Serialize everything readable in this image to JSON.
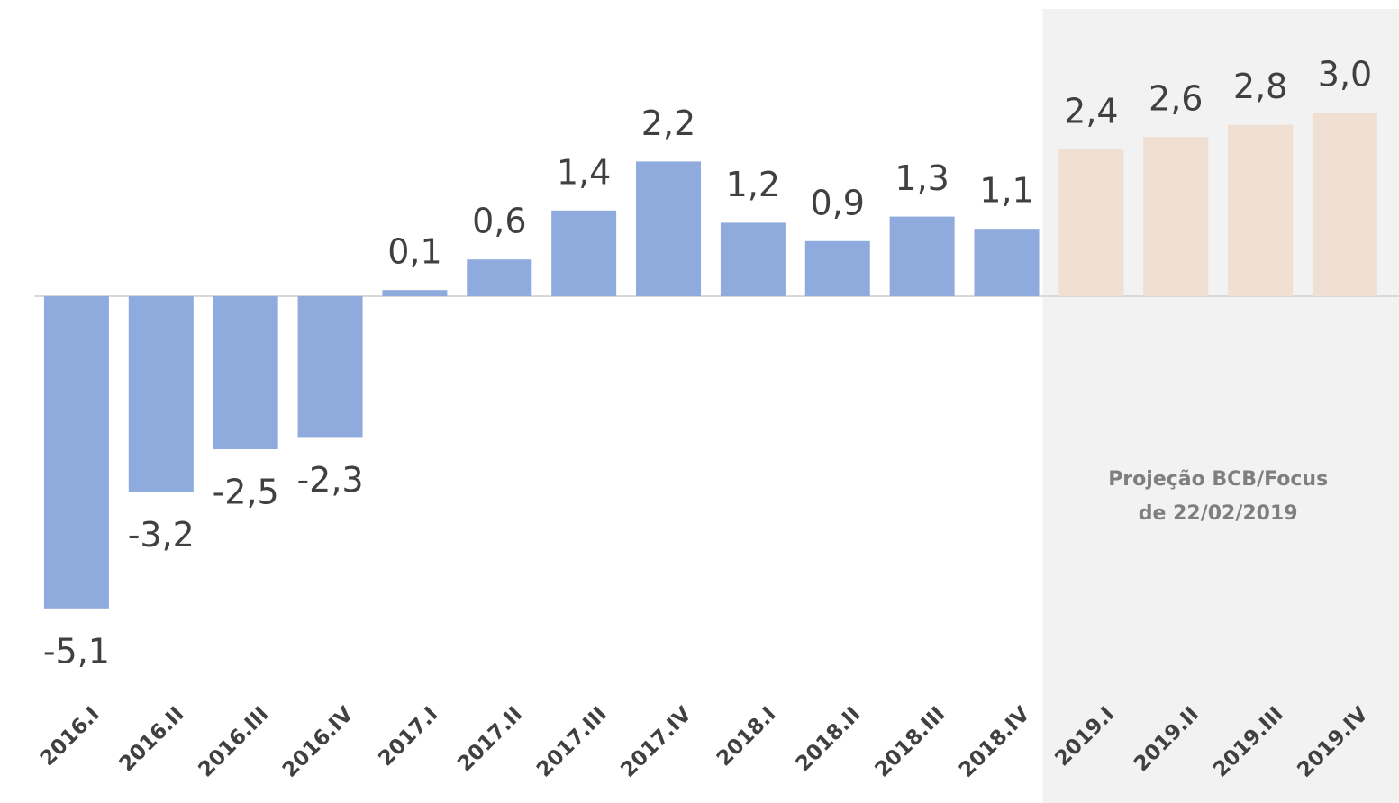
{
  "chart_data": {
    "type": "bar",
    "categories": [
      "2016.I",
      "2016.II",
      "2016.III",
      "2016.IV",
      "2017.I",
      "2017.II",
      "2017.III",
      "2017.IV",
      "2018.I",
      "2018.II",
      "2018.III",
      "2018.IV",
      "2019.I",
      "2019.II",
      "2019.III",
      "2019.IV"
    ],
    "values": [
      -5.1,
      -3.2,
      -2.5,
      -2.3,
      0.1,
      0.6,
      1.4,
      2.2,
      1.2,
      0.9,
      1.3,
      1.1,
      2.4,
      2.6,
      2.8,
      3.0
    ],
    "value_labels": [
      "-5,1",
      "-3,2",
      "-2,5",
      "-2,3",
      "0,1",
      "0,6",
      "1,4",
      "2,2",
      "1,2",
      "0,9",
      "1,3",
      "1,1",
      "2,4",
      "2,6",
      "2,8",
      "3,0"
    ],
    "colors": [
      "#8faadc",
      "#8faadc",
      "#8faadc",
      "#8faadc",
      "#8faadc",
      "#8faadc",
      "#8faadc",
      "#8faadc",
      "#8faadc",
      "#8faadc",
      "#8faadc",
      "#8faadc",
      "#f0dfd3",
      "#f0dfd3",
      "#f0dfd3",
      "#f0dfd3"
    ],
    "shade_color": "#f2f2f2",
    "annotation": [
      "Projeção BCB/Focus",
      "de 22/02/2019"
    ],
    "ylim": [
      -6,
      4
    ]
  }
}
